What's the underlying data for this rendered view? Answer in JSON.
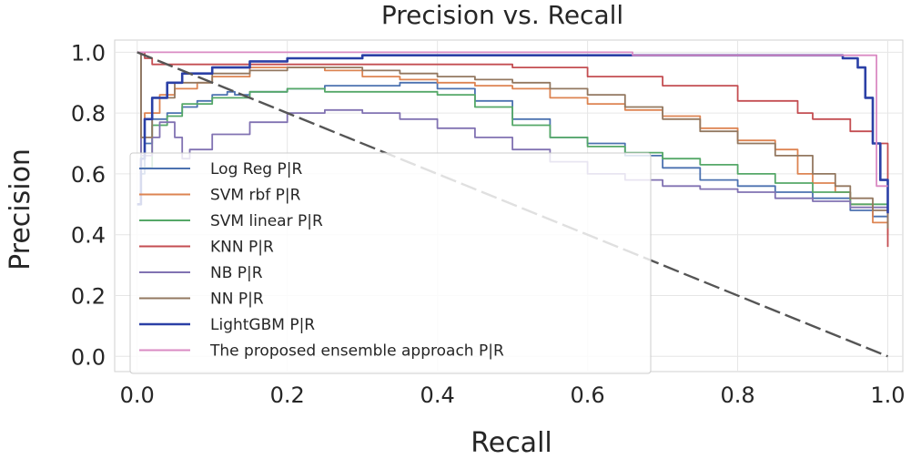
{
  "chart_data": {
    "type": "line",
    "title": "Precision vs. Recall",
    "xlabel": "Recall",
    "ylabel": "Precision",
    "xlim": [
      -0.03,
      1.02
    ],
    "ylim": [
      -0.05,
      1.04
    ],
    "xticks": [
      0.0,
      0.2,
      0.4,
      0.6,
      0.8,
      1.0
    ],
    "xtick_labels": [
      "0.0",
      "0.2",
      "0.4",
      "0.6",
      "0.8",
      "1.0"
    ],
    "yticks": [
      0.0,
      0.2,
      0.4,
      0.6,
      0.8,
      1.0
    ],
    "ytick_labels": [
      "0.0",
      "0.2",
      "0.4",
      "0.6",
      "0.8",
      "1.0"
    ],
    "grid": true,
    "legend_position": "lower-left",
    "baseline": {
      "name": "no-skill diagonal",
      "x": [
        0.0,
        1.0
      ],
      "y": [
        1.0,
        0.0
      ],
      "color": "#555555",
      "style": "dashed"
    },
    "series": [
      {
        "name": "Log Reg P|R",
        "color": "#4c72b0",
        "x": [
          0.0,
          0.005,
          0.01,
          0.02,
          0.04,
          0.06,
          0.08,
          0.1,
          0.12,
          0.13,
          0.15,
          0.2,
          0.25,
          0.3,
          0.35,
          0.4,
          0.45,
          0.5,
          0.55,
          0.6,
          0.65,
          0.7,
          0.75,
          0.8,
          0.85,
          0.9,
          0.95,
          0.98,
          1.0
        ],
        "y": [
          1.0,
          0.6,
          0.7,
          0.78,
          0.8,
          0.82,
          0.84,
          0.86,
          0.87,
          0.86,
          0.87,
          0.88,
          0.89,
          0.89,
          0.9,
          0.88,
          0.84,
          0.78,
          0.72,
          0.7,
          0.66,
          0.62,
          0.58,
          0.56,
          0.54,
          0.52,
          0.48,
          0.46,
          0.45
        ]
      },
      {
        "name": "SVM rbf P|R",
        "color": "#dd8452",
        "x": [
          0.0,
          0.005,
          0.01,
          0.03,
          0.05,
          0.08,
          0.1,
          0.15,
          0.2,
          0.25,
          0.3,
          0.35,
          0.4,
          0.45,
          0.5,
          0.55,
          0.6,
          0.65,
          0.7,
          0.75,
          0.8,
          0.85,
          0.88,
          0.9,
          0.93,
          0.95,
          0.98,
          1.0
        ],
        "y": [
          1.0,
          0.65,
          0.8,
          0.86,
          0.88,
          0.9,
          0.92,
          0.95,
          0.95,
          0.94,
          0.92,
          0.91,
          0.9,
          0.89,
          0.88,
          0.85,
          0.83,
          0.81,
          0.79,
          0.75,
          0.71,
          0.68,
          0.6,
          0.57,
          0.54,
          0.5,
          0.44,
          0.4
        ]
      },
      {
        "name": "SVM linear P|R",
        "color": "#55a868",
        "x": [
          0.0,
          0.005,
          0.02,
          0.04,
          0.06,
          0.1,
          0.15,
          0.2,
          0.25,
          0.3,
          0.35,
          0.4,
          0.45,
          0.5,
          0.55,
          0.6,
          0.65,
          0.7,
          0.75,
          0.8,
          0.85,
          0.9,
          0.95,
          1.0
        ],
        "y": [
          1.0,
          0.62,
          0.76,
          0.79,
          0.83,
          0.85,
          0.87,
          0.88,
          0.87,
          0.87,
          0.87,
          0.86,
          0.82,
          0.76,
          0.72,
          0.69,
          0.67,
          0.65,
          0.63,
          0.6,
          0.57,
          0.54,
          0.5,
          0.43
        ]
      },
      {
        "name": "KNN P|R",
        "color": "#c44e52",
        "x": [
          0.0,
          0.01,
          0.02,
          0.1,
          0.2,
          0.35,
          0.5,
          0.55,
          0.6,
          0.7,
          0.8,
          0.88,
          0.9,
          0.95,
          0.98,
          1.0
        ],
        "y": [
          1.0,
          0.98,
          0.96,
          0.96,
          0.96,
          0.96,
          0.95,
          0.95,
          0.92,
          0.89,
          0.84,
          0.8,
          0.78,
          0.74,
          0.7,
          0.36
        ]
      },
      {
        "name": "NB P|R",
        "color": "#8172b2",
        "x": [
          0.0,
          0.005,
          0.02,
          0.03,
          0.05,
          0.06,
          0.07,
          0.1,
          0.15,
          0.2,
          0.25,
          0.3,
          0.35,
          0.4,
          0.45,
          0.5,
          0.55,
          0.6,
          0.65,
          0.7,
          0.75,
          0.8,
          0.85,
          0.9,
          0.95,
          1.0
        ],
        "y": [
          1.0,
          0.66,
          0.72,
          0.77,
          0.72,
          0.65,
          0.68,
          0.73,
          0.77,
          0.8,
          0.81,
          0.8,
          0.78,
          0.75,
          0.72,
          0.68,
          0.64,
          0.6,
          0.58,
          0.56,
          0.55,
          0.54,
          0.52,
          0.51,
          0.49,
          0.45
        ]
      },
      {
        "name": "NN P|R",
        "color": "#937860",
        "x": [
          0.0,
          0.005,
          0.02,
          0.05,
          0.1,
          0.15,
          0.2,
          0.25,
          0.3,
          0.35,
          0.4,
          0.45,
          0.5,
          0.55,
          0.6,
          0.65,
          0.7,
          0.75,
          0.8,
          0.85,
          0.9,
          0.93,
          0.95,
          0.98,
          1.0
        ],
        "y": [
          1.0,
          0.72,
          0.85,
          0.9,
          0.93,
          0.94,
          0.95,
          0.95,
          0.94,
          0.93,
          0.92,
          0.91,
          0.9,
          0.88,
          0.86,
          0.82,
          0.78,
          0.74,
          0.7,
          0.66,
          0.6,
          0.56,
          0.52,
          0.48,
          0.42
        ]
      },
      {
        "name": "LightGBM P|R",
        "color": "#2b40a6",
        "x": [
          0.0,
          0.005,
          0.01,
          0.02,
          0.04,
          0.06,
          0.1,
          0.15,
          0.2,
          0.3,
          0.4,
          0.5,
          0.6,
          0.7,
          0.8,
          0.9,
          0.94,
          0.96,
          0.97,
          0.98,
          0.99,
          1.0
        ],
        "y": [
          0.5,
          0.65,
          0.78,
          0.85,
          0.9,
          0.93,
          0.95,
          0.97,
          0.98,
          0.99,
          0.99,
          0.99,
          0.99,
          0.99,
          0.99,
          0.99,
          0.98,
          0.95,
          0.85,
          0.7,
          0.58,
          0.47
        ]
      },
      {
        "name": "The proposed ensemble approach P|R",
        "color": "#da8bc3",
        "x": [
          0.0,
          0.05,
          0.1,
          0.2,
          0.4,
          0.6,
          0.65,
          0.66,
          0.8,
          0.9,
          0.98,
          0.985,
          1.0
        ],
        "y": [
          1.0,
          1.0,
          1.0,
          1.0,
          1.0,
          1.0,
          1.0,
          0.99,
          0.99,
          0.99,
          0.99,
          0.56,
          0.56
        ]
      }
    ]
  }
}
